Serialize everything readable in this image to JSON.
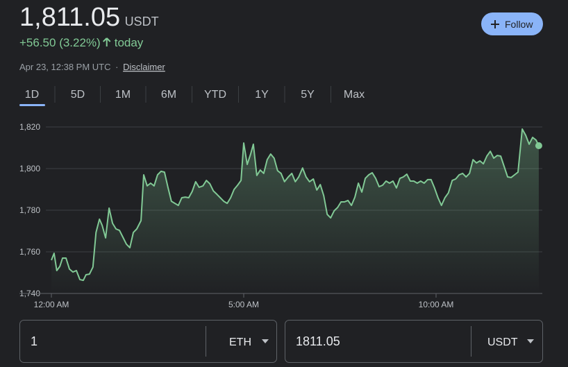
{
  "header": {
    "price": "1,811.05",
    "currency": "USDT",
    "change": "+56.50 (3.22%)",
    "change_period": "today",
    "timestamp": "Apr 23, 12:38 PM UTC",
    "separator": "·",
    "disclaimer": "Disclaimer"
  },
  "follow_button": "Follow",
  "tabs": [
    "1D",
    "5D",
    "1M",
    "6M",
    "YTD",
    "1Y",
    "5Y",
    "Max"
  ],
  "chart_data": {
    "type": "line",
    "color": "#81c995",
    "x": [
      0,
      0.07,
      0.14,
      0.22,
      0.29,
      0.38,
      0.47,
      0.56,
      0.65,
      0.74,
      0.83,
      0.9,
      0.99,
      1.08,
      1.16,
      1.25,
      1.32,
      1.41,
      1.5,
      1.59,
      1.68,
      1.77,
      1.86,
      1.95,
      2.04,
      2.13,
      2.22,
      2.33,
      2.4,
      2.49,
      2.58,
      2.67,
      2.76,
      2.85,
      2.94,
      3.03,
      3.12,
      3.21,
      3.3,
      3.39,
      3.48,
      3.57,
      3.66,
      3.75,
      3.84,
      3.94,
      4.03,
      4.12,
      4.21,
      4.3,
      4.39,
      4.48,
      4.57,
      4.66,
      4.75,
      4.84,
      4.93,
      5,
      5.09,
      5.18,
      5.25,
      5.34,
      5.43,
      5.52,
      5.61,
      5.7,
      5.79,
      5.88,
      5.97,
      6.06,
      6.16,
      6.25,
      6.34,
      6.43,
      6.53,
      6.62,
      6.71,
      6.81,
      6.9,
      6.99,
      7.08,
      7.17,
      7.26,
      7.35,
      7.44,
      7.53,
      7.62,
      7.71,
      7.8,
      7.89,
      7.98,
      8.07,
      8.16,
      8.25,
      8.34,
      8.43,
      8.52,
      8.61,
      8.7,
      8.79,
      8.88,
      8.97,
      9.06,
      9.15,
      9.24,
      9.33,
      9.42,
      9.51,
      9.6,
      9.69,
      9.78,
      9.87,
      9.96,
      10.05,
      10.14,
      10.23,
      10.32,
      10.42,
      10.51,
      10.6,
      10.69,
      10.78,
      10.87,
      10.96,
      11.05,
      11.14,
      11.23,
      11.32,
      11.41,
      11.5,
      11.59,
      11.68,
      11.77,
      11.86,
      11.95,
      12.04,
      12.13,
      12.24,
      12.33,
      12.42,
      12.51,
      12.6,
      12.67
    ],
    "values": [
      1756,
      1759.3,
      1751,
      1753,
      1757,
      1757,
      1751.7,
      1750.3,
      1751,
      1746.7,
      1746.3,
      1749,
      1749.3,
      1752.7,
      1769.3,
      1775.7,
      1772.7,
      1766.7,
      1781,
      1773.7,
      1771,
      1770.3,
      1767,
      1763.7,
      1762,
      1769.3,
      1771,
      1775,
      1797,
      1791.7,
      1793,
      1791.7,
      1797,
      1798.7,
      1798.3,
      1791,
      1784.3,
      1783.3,
      1782.3,
      1786,
      1786.3,
      1786,
      1789,
      1793.7,
      1791,
      1791.7,
      1794.3,
      1792.7,
      1789.3,
      1787.7,
      1786,
      1784.3,
      1783.3,
      1786,
      1790,
      1792,
      1794.3,
      1812.3,
      1802,
      1807,
      1811.7,
      1796.7,
      1799.3,
      1797.7,
      1804.3,
      1807,
      1805,
      1799,
      1797.7,
      1793.7,
      1796,
      1797.7,
      1793.7,
      1796,
      1800.3,
      1796,
      1793.7,
      1795,
      1789.7,
      1792.3,
      1787,
      1778,
      1776.3,
      1779.7,
      1781.3,
      1784,
      1784,
      1784.7,
      1782.3,
      1786.3,
      1793,
      1788.7,
      1795.3,
      1797,
      1798,
      1795.3,
      1791.3,
      1792,
      1794,
      1793,
      1794,
      1790.7,
      1795.3,
      1796,
      1797.3,
      1794,
      1794,
      1793,
      1794,
      1793,
      1794.7,
      1794.7,
      1790.7,
      1786,
      1782.3,
      1786,
      1788.3,
      1794.3,
      1795,
      1797,
      1797.7,
      1796,
      1797.7,
      1804.3,
      1802.7,
      1803.7,
      1802.3,
      1806,
      1808.3,
      1805,
      1806.3,
      1806,
      1801,
      1796,
      1795.7,
      1797,
      1798.3,
      1819,
      1816,
      1811.7,
      1815,
      1813.7,
      1811
    ],
    "xlim": [
      0,
      12.75
    ],
    "xticks": [
      {
        "value": 0,
        "label": "12:00 AM"
      },
      {
        "value": 5,
        "label": "5:00 AM"
      },
      {
        "value": 10,
        "label": "10:00 AM"
      }
    ],
    "ylim": [
      1740,
      1830
    ],
    "yticks": [
      {
        "value": 1740,
        "label": "1,740"
      },
      {
        "value": 1760,
        "label": "1,760"
      },
      {
        "value": 1780,
        "label": "1,780"
      },
      {
        "value": 1800,
        "label": "1,800"
      },
      {
        "value": 1820,
        "label": "1,820"
      }
    ],
    "grid": true
  },
  "converter": {
    "from_amount": "1",
    "from_unit": "ETH",
    "to_amount": "1811.05",
    "to_unit": "USDT"
  }
}
